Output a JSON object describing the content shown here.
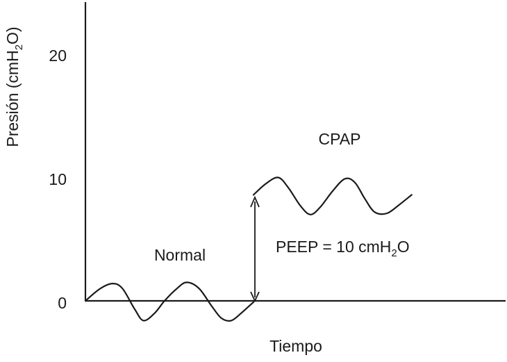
{
  "chart_data": {
    "type": "line",
    "xlabel": "Tiempo",
    "ylabel": {
      "prefix": "Presión (cmH",
      "sub": "2",
      "suffix": "O)"
    },
    "ylim": [
      0,
      23
    ],
    "yticks": [
      0,
      10,
      20
    ],
    "grid": false,
    "legend": "none",
    "series": [
      {
        "name": "Normal",
        "points": [
          [
            0,
            0
          ],
          [
            0.6,
            1.0
          ],
          [
            1.1,
            1.4
          ],
          [
            1.5,
            1.0
          ],
          [
            2.0,
            -0.7
          ],
          [
            2.35,
            -1.6
          ],
          [
            2.8,
            -1.0
          ],
          [
            3.2,
            0.0
          ],
          [
            3.7,
            1.0
          ],
          [
            4.1,
            1.5
          ],
          [
            4.6,
            1.0
          ],
          [
            5.1,
            -0.4
          ],
          [
            5.5,
            -1.4
          ],
          [
            5.9,
            -1.6
          ],
          [
            6.3,
            -1.0
          ],
          [
            6.8,
            -0.1
          ]
        ]
      },
      {
        "name": "CPAP",
        "points": [
          [
            6.8,
            8.6
          ],
          [
            7.3,
            9.5
          ],
          [
            7.8,
            10.0
          ],
          [
            8.2,
            9.2
          ],
          [
            8.7,
            7.7
          ],
          [
            9.1,
            7.0
          ],
          [
            9.5,
            7.6
          ],
          [
            10.0,
            8.9
          ],
          [
            10.5,
            9.9
          ],
          [
            10.9,
            9.6
          ],
          [
            11.3,
            8.3
          ],
          [
            11.7,
            7.2
          ],
          [
            12.2,
            7.1
          ],
          [
            12.7,
            7.8
          ],
          [
            13.2,
            8.6
          ]
        ]
      }
    ],
    "annotations": {
      "normal": "Normal",
      "cpap": "CPAP",
      "peep": {
        "prefix": "PEEP = 10 cmH",
        "sub": "2",
        "suffix": "O"
      }
    },
    "xlim": [
      0,
      17
    ]
  }
}
